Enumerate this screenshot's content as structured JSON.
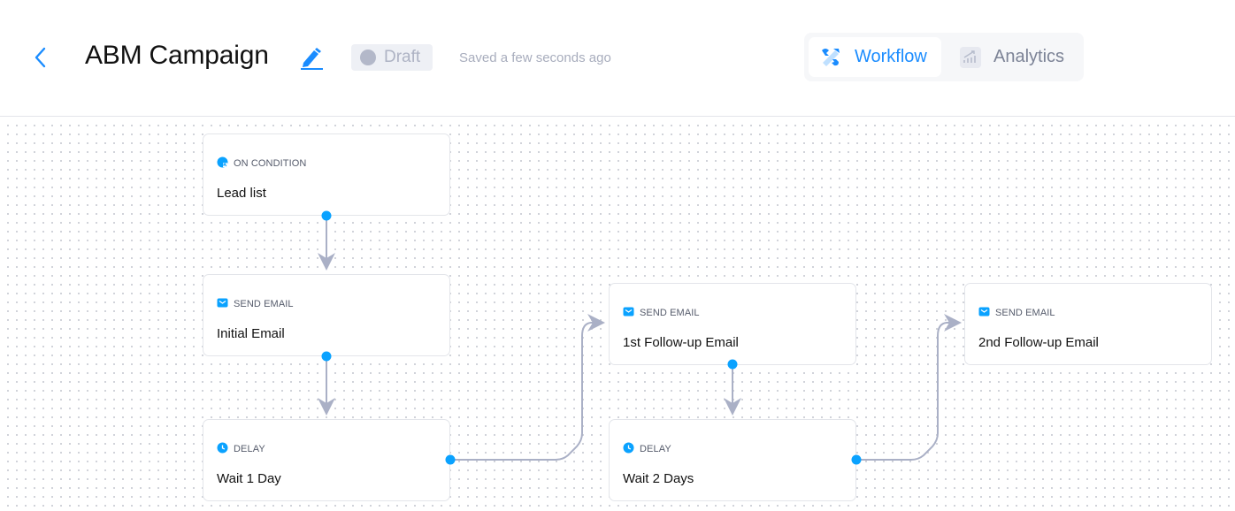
{
  "header": {
    "title": "ABM Campaign",
    "status": "Draft",
    "saved_text": "Saved a few seconds ago",
    "tabs": [
      {
        "label": "Workflow",
        "icon": "workflow-icon",
        "active": true
      },
      {
        "label": "Analytics",
        "icon": "analytics-icon",
        "active": false
      }
    ]
  },
  "colors": {
    "accent": "#1a8cff",
    "node_dot": "#0aa2ff",
    "edge": "#aab0c6"
  },
  "nodes": [
    {
      "type": "ON CONDITION",
      "icon": "condition-icon",
      "name": "Lead list"
    },
    {
      "type": "SEND EMAIL",
      "icon": "email-icon",
      "name": "Initial Email"
    },
    {
      "type": "DELAY",
      "icon": "clock-icon",
      "name": "Wait 1 Day"
    },
    {
      "type": "SEND EMAIL",
      "icon": "email-icon",
      "name": "1st Follow-up Email"
    },
    {
      "type": "DELAY",
      "icon": "clock-icon",
      "name": "Wait 2 Days"
    },
    {
      "type": "SEND EMAIL",
      "icon": "email-icon",
      "name": "2nd Follow-up Email"
    }
  ]
}
